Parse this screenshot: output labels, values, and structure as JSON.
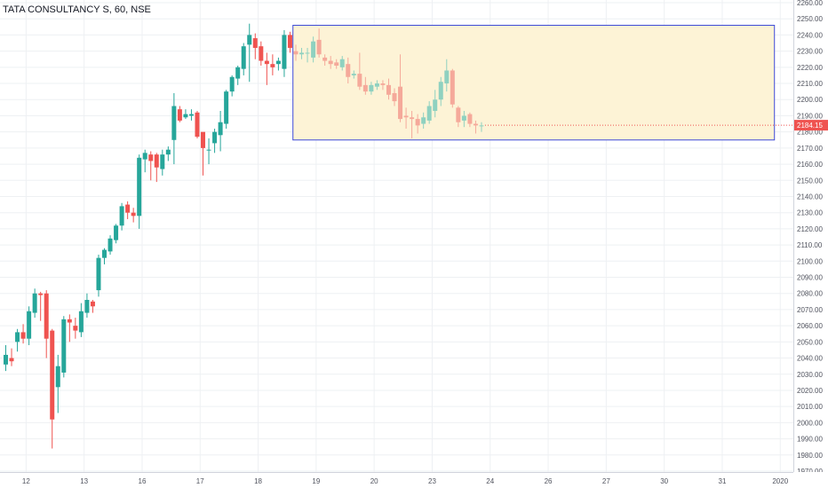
{
  "header": {
    "symbol_title": "TATA CONSULTANCY S, 60, NSE"
  },
  "colors": {
    "up": "#26a69a",
    "down": "#ef5350",
    "up_faded": "#8fd1c0",
    "down_faded": "#f5a99a",
    "grid": "#eef0f3",
    "axis_text": "#50535e",
    "box_fill": "#fdf3d6",
    "box_stroke": "#3e4ad8",
    "price_tag": "#ef5350"
  },
  "price_axis": {
    "min": 1970,
    "max": 2260,
    "step": 10,
    "labels": [
      "1970.00",
      "1980.00",
      "1990.00",
      "2000.00",
      "2010.00",
      "2020.00",
      "2030.00",
      "2040.00",
      "2050.00",
      "2060.00",
      "2070.00",
      "2080.00",
      "2090.00",
      "2100.00",
      "2110.00",
      "2120.00",
      "2130.00",
      "2140.00",
      "2150.00",
      "2160.00",
      "2170.00",
      "2180.00",
      "2190.00",
      "2200.00",
      "2210.00",
      "2220.00",
      "2230.00",
      "2240.00",
      "2250.00",
      "2260.00"
    ]
  },
  "last_price": {
    "value": 2184.15,
    "label": "2184.15"
  },
  "time_axis": {
    "labels": [
      {
        "text": "12",
        "bar": 3.5
      },
      {
        "text": "13",
        "bar": 13.5
      },
      {
        "text": "16",
        "bar": 23.5
      },
      {
        "text": "17",
        "bar": 33.5
      },
      {
        "text": "18",
        "bar": 43.5
      },
      {
        "text": "19",
        "bar": 53.5
      },
      {
        "text": "20",
        "bar": 63.5
      },
      {
        "text": "23",
        "bar": 73.5
      },
      {
        "text": "24",
        "bar": 83.5
      },
      {
        "text": "26",
        "bar": 93.5
      },
      {
        "text": "27",
        "bar": 103.5
      },
      {
        "text": "30",
        "bar": 113.5
      },
      {
        "text": "31",
        "bar": 123.5
      },
      {
        "text": "2020",
        "bar": 133.5
      }
    ]
  },
  "chart_data": {
    "type": "candlestick",
    "title": "TATA CONSULTANCY S, 60, NSE",
    "ylim": [
      1970,
      2260
    ],
    "highlight_range": {
      "from_bar": 49.5,
      "to_bar": 132.5,
      "low": 2175,
      "high": 2246
    },
    "candles": [
      {
        "o": 2036,
        "h": 2048,
        "l": 2032,
        "c": 2042
      },
      {
        "o": 2040,
        "h": 2046,
        "l": 2035,
        "c": 2038
      },
      {
        "o": 2050,
        "h": 2058,
        "l": 2044,
        "c": 2056
      },
      {
        "o": 2056,
        "h": 2061,
        "l": 2049,
        "c": 2052
      },
      {
        "o": 2052,
        "h": 2072,
        "l": 2048,
        "c": 2069
      },
      {
        "o": 2068,
        "h": 2083,
        "l": 2065,
        "c": 2080
      },
      {
        "o": 2080,
        "h": 2081,
        "l": 2063,
        "c": 2079
      },
      {
        "o": 2080,
        "h": 2082,
        "l": 2040,
        "c": 2052
      },
      {
        "o": 2057,
        "h": 2058,
        "l": 1984,
        "c": 2002
      },
      {
        "o": 2022,
        "h": 2042,
        "l": 2006,
        "c": 2035
      },
      {
        "o": 2031,
        "h": 2066,
        "l": 2028,
        "c": 2064
      },
      {
        "o": 2064,
        "h": 2067,
        "l": 2050,
        "c": 2062
      },
      {
        "o": 2060,
        "h": 2065,
        "l": 2052,
        "c": 2057
      },
      {
        "o": 2056,
        "h": 2074,
        "l": 2053,
        "c": 2069
      },
      {
        "o": 2068,
        "h": 2080,
        "l": 2065,
        "c": 2076
      },
      {
        "o": 2075,
        "h": 2076,
        "l": 2068,
        "c": 2072
      },
      {
        "o": 2082,
        "h": 2104,
        "l": 2078,
        "c": 2102
      },
      {
        "o": 2102,
        "h": 2108,
        "l": 2098,
        "c": 2107
      },
      {
        "o": 2106,
        "h": 2116,
        "l": 2104,
        "c": 2114
      },
      {
        "o": 2113,
        "h": 2123,
        "l": 2111,
        "c": 2122
      },
      {
        "o": 2122,
        "h": 2136,
        "l": 2119,
        "c": 2134
      },
      {
        "o": 2135,
        "h": 2137,
        "l": 2126,
        "c": 2130
      },
      {
        "o": 2130,
        "h": 2133,
        "l": 2124,
        "c": 2128
      },
      {
        "o": 2128,
        "h": 2166,
        "l": 2120,
        "c": 2164
      },
      {
        "o": 2163,
        "h": 2169,
        "l": 2155,
        "c": 2167
      },
      {
        "o": 2166,
        "h": 2168,
        "l": 2150,
        "c": 2162
      },
      {
        "o": 2166,
        "h": 2167,
        "l": 2149,
        "c": 2158
      },
      {
        "o": 2157,
        "h": 2169,
        "l": 2153,
        "c": 2166
      },
      {
        "o": 2166,
        "h": 2171,
        "l": 2162,
        "c": 2169
      },
      {
        "o": 2175,
        "h": 2204,
        "l": 2160,
        "c": 2196
      },
      {
        "o": 2194,
        "h": 2196,
        "l": 2186,
        "c": 2187
      },
      {
        "o": 2189,
        "h": 2194,
        "l": 2188,
        "c": 2191
      },
      {
        "o": 2190,
        "h": 2194,
        "l": 2187,
        "c": 2191
      },
      {
        "o": 2192,
        "h": 2193,
        "l": 2176,
        "c": 2177
      },
      {
        "o": 2180,
        "h": 2179,
        "l": 2153,
        "c": 2170
      },
      {
        "o": 2169,
        "h": 2176,
        "l": 2160,
        "c": 2169
      },
      {
        "o": 2173,
        "h": 2182,
        "l": 2167,
        "c": 2180
      },
      {
        "o": 2178,
        "h": 2193,
        "l": 2168,
        "c": 2186
      },
      {
        "o": 2185,
        "h": 2206,
        "l": 2182,
        "c": 2205
      },
      {
        "o": 2205,
        "h": 2215,
        "l": 2202,
        "c": 2214
      },
      {
        "o": 2213,
        "h": 2221,
        "l": 2209,
        "c": 2220
      },
      {
        "o": 2219,
        "h": 2235,
        "l": 2215,
        "c": 2233
      },
      {
        "o": 2234,
        "h": 2247,
        "l": 2211,
        "c": 2240
      },
      {
        "o": 2238,
        "h": 2241,
        "l": 2225,
        "c": 2232
      },
      {
        "o": 2233,
        "h": 2236,
        "l": 2221,
        "c": 2224
      },
      {
        "o": 2224,
        "h": 2229,
        "l": 2209,
        "c": 2222
      },
      {
        "o": 2222,
        "h": 2228,
        "l": 2215,
        "c": 2220
      },
      {
        "o": 2222,
        "h": 2226,
        "l": 2218,
        "c": 2224
      },
      {
        "o": 2219,
        "h": 2243,
        "l": 2214,
        "c": 2240
      },
      {
        "o": 2240,
        "h": 2242,
        "l": 2229,
        "c": 2232
      },
      {
        "o": 2230,
        "h": 2234,
        "l": 2224,
        "c": 2228
      },
      {
        "o": 2228,
        "h": 2232,
        "l": 2225,
        "c": 2229
      },
      {
        "o": 2229,
        "h": 2232,
        "l": 2223,
        "c": 2229
      },
      {
        "o": 2226,
        "h": 2239,
        "l": 2223,
        "c": 2236
      },
      {
        "o": 2237,
        "h": 2244,
        "l": 2226,
        "c": 2228
      },
      {
        "o": 2226,
        "h": 2228,
        "l": 2221,
        "c": 2224
      },
      {
        "o": 2224,
        "h": 2227,
        "l": 2219,
        "c": 2222
      },
      {
        "o": 2223,
        "h": 2225,
        "l": 2219,
        "c": 2221
      },
      {
        "o": 2220,
        "h": 2227,
        "l": 2218,
        "c": 2225
      },
      {
        "o": 2222,
        "h": 2226,
        "l": 2210,
        "c": 2214
      },
      {
        "o": 2215,
        "h": 2218,
        "l": 2213,
        "c": 2216
      },
      {
        "o": 2216,
        "h": 2229,
        "l": 2206,
        "c": 2208
      },
      {
        "o": 2209,
        "h": 2214,
        "l": 2203,
        "c": 2205
      },
      {
        "o": 2205,
        "h": 2211,
        "l": 2203,
        "c": 2209
      },
      {
        "o": 2208,
        "h": 2212,
        "l": 2206,
        "c": 2210
      },
      {
        "o": 2210,
        "h": 2212,
        "l": 2206,
        "c": 2209
      },
      {
        "o": 2209,
        "h": 2213,
        "l": 2200,
        "c": 2203
      },
      {
        "o": 2204,
        "h": 2207,
        "l": 2196,
        "c": 2199
      },
      {
        "o": 2208,
        "h": 2228,
        "l": 2186,
        "c": 2188
      },
      {
        "o": 2190,
        "h": 2195,
        "l": 2182,
        "c": 2189
      },
      {
        "o": 2189,
        "h": 2193,
        "l": 2176,
        "c": 2188
      },
      {
        "o": 2188,
        "h": 2191,
        "l": 2179,
        "c": 2184
      },
      {
        "o": 2185,
        "h": 2192,
        "l": 2182,
        "c": 2189
      },
      {
        "o": 2187,
        "h": 2199,
        "l": 2185,
        "c": 2196
      },
      {
        "o": 2193,
        "h": 2206,
        "l": 2189,
        "c": 2200
      },
      {
        "o": 2200,
        "h": 2214,
        "l": 2196,
        "c": 2211
      },
      {
        "o": 2210,
        "h": 2225,
        "l": 2205,
        "c": 2218
      },
      {
        "o": 2218,
        "h": 2219,
        "l": 2195,
        "c": 2197
      },
      {
        "o": 2195,
        "h": 2196,
        "l": 2183,
        "c": 2186
      },
      {
        "o": 2187,
        "h": 2193,
        "l": 2183,
        "c": 2190
      },
      {
        "o": 2191,
        "h": 2192,
        "l": 2183,
        "c": 2185
      },
      {
        "o": 2185,
        "h": 2187,
        "l": 2179,
        "c": 2184
      },
      {
        "o": 2184,
        "h": 2186,
        "l": 2180,
        "c": 2184
      }
    ]
  }
}
